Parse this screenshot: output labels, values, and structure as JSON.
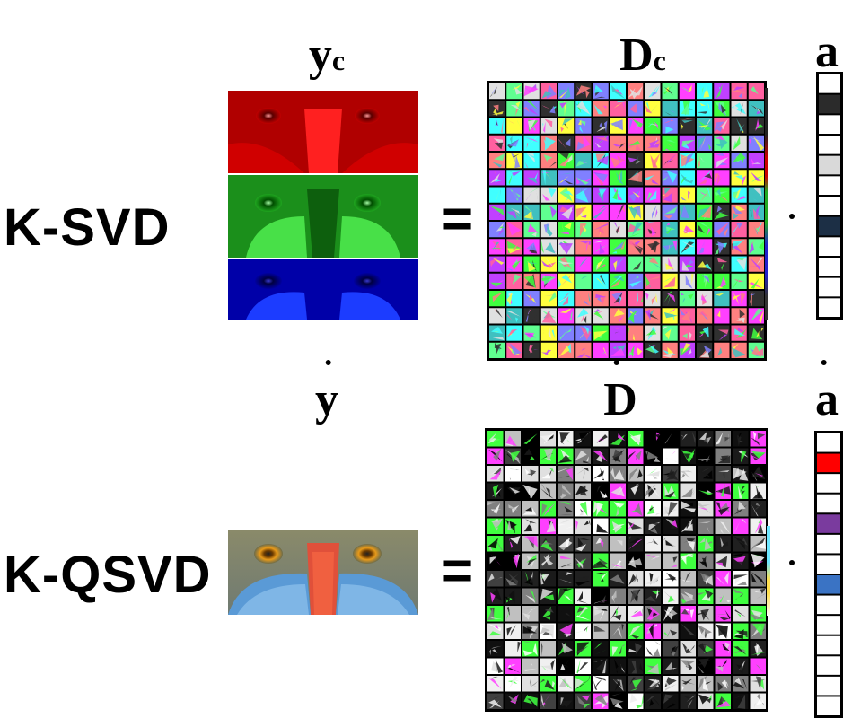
{
  "rows": [
    {
      "method_label": "K-SVD",
      "y_symbol": "y",
      "y_subscript": "c",
      "d_symbol": "D",
      "d_subscript": "c",
      "a_symbol": "a",
      "equals": "=",
      "image_desc_channels": [
        "red",
        "green",
        "blue"
      ],
      "dictionary_style": "color",
      "vector_highlight_colors": [
        "#2b2b2b",
        "#d9d9d9",
        "#1c2f45"
      ],
      "vector_highlight_indices": [
        1,
        4,
        7
      ]
    },
    {
      "method_label": "K-QSVD",
      "y_symbol": "y",
      "d_symbol": "D",
      "a_symbol": "a",
      "equals": "=",
      "dictionary_style": "gray",
      "vector_highlight_colors": [
        "#ff0000",
        "#7a3b9e",
        "#3a73c4"
      ],
      "vector_highlight_indices": [
        1,
        4,
        7
      ]
    }
  ]
}
